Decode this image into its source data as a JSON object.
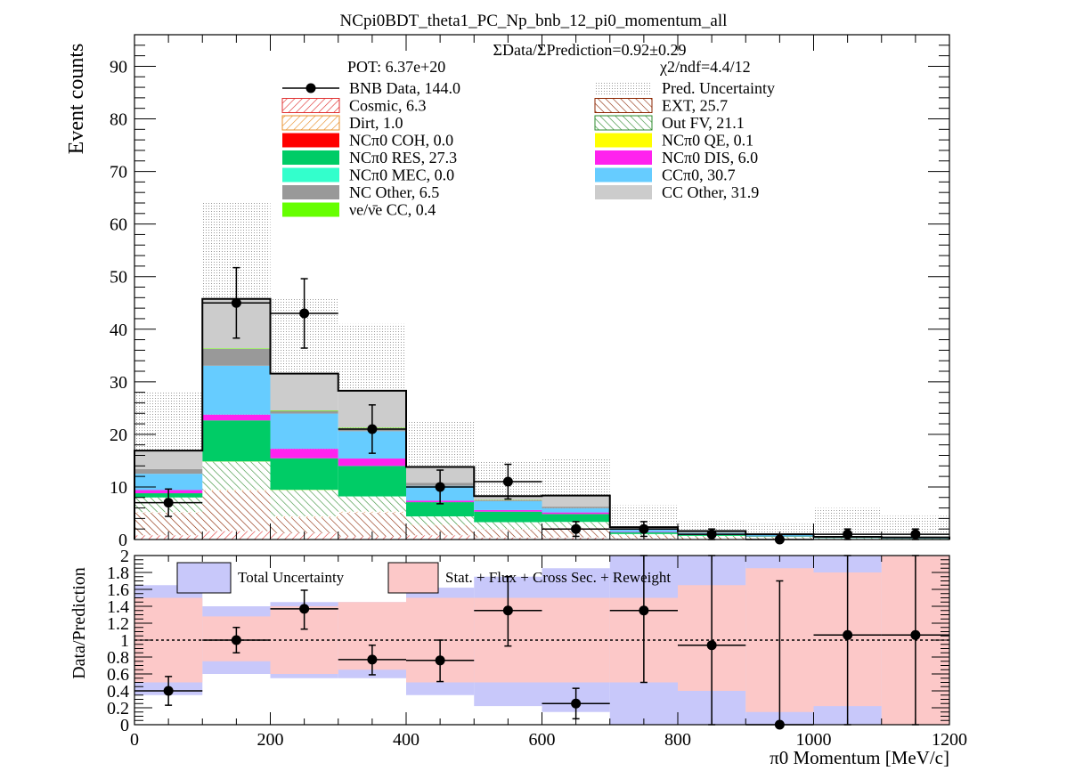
{
  "chart_data": [
    {
      "type": "bar",
      "title": "NCpi0BDT_theta1_PC_Np_bnb_12_pi0_momentum_all",
      "ylabel": "Event counts",
      "xlim": [
        0,
        1200
      ],
      "ylim": [
        0,
        96
      ],
      "bin_edges": [
        0,
        100,
        200,
        300,
        400,
        500,
        600,
        700,
        800,
        900,
        1000,
        1100,
        1200
      ],
      "stacked": true,
      "series": [
        {
          "name": "Cosmic, 6.3",
          "color": "#e03030",
          "pattern": "hatch",
          "values": [
            0.8,
            1.6,
            1.2,
            0.6,
            0.8,
            0.4,
            0.4,
            0.2,
            0.1,
            0.1,
            0.05,
            0.05
          ]
        },
        {
          "name": "EXT, 25.7",
          "color": "#8b2500",
          "pattern": "hatch",
          "values": [
            4.3,
            7.6,
            3.0,
            4.5,
            1.9,
            1.5,
            1.8,
            0.5,
            0.3,
            0.2,
            0.1,
            0.0
          ]
        },
        {
          "name": "Dirt, 1.0",
          "color": "#e8902c",
          "pattern": "hatch",
          "values": [
            0.1,
            0.2,
            0.2,
            0.2,
            0.1,
            0.1,
            0.05,
            0.05,
            0.0,
            0.0,
            0.0,
            0.0
          ]
        },
        {
          "name": "Out FV, 21.1",
          "color": "#2e8b2e",
          "pattern": "hatch",
          "values": [
            2.8,
            5.4,
            5.0,
            2.9,
            1.6,
            1.3,
            1.1,
            0.3,
            0.3,
            0.2,
            0.1,
            0.1
          ]
        },
        {
          "name": "NCπ0 COH,  0.0",
          "color": "#ff0000",
          "pattern": "solid",
          "values": [
            0,
            0,
            0,
            0,
            0,
            0,
            0,
            0,
            0,
            0,
            0,
            0
          ]
        },
        {
          "name": "NCπ0 QE,  0.1",
          "color": "#ffff00",
          "pattern": "solid",
          "values": [
            0.0,
            0.05,
            0.05,
            0.0,
            0.0,
            0.0,
            0.0,
            0.0,
            0.0,
            0.0,
            0.0,
            0.0
          ]
        },
        {
          "name": "NCπ0 RES,  27.3",
          "color": "#00cc66",
          "pattern": "solid",
          "values": [
            0.8,
            7.8,
            6.0,
            5.8,
            2.7,
            2.0,
            1.5,
            0.3,
            0.2,
            0.1,
            0.05,
            0.05
          ]
        },
        {
          "name": "NCπ0 DIS,  6.0",
          "color": "#ff22ee",
          "pattern": "solid",
          "values": [
            0.6,
            1.1,
            1.8,
            1.4,
            0.3,
            0.3,
            0.3,
            0.1,
            0.05,
            0.05,
            0.0,
            0.0
          ]
        },
        {
          "name": "NCπ0 MEC,  0.0",
          "color": "#33ffcc",
          "pattern": "solid",
          "values": [
            0,
            0,
            0,
            0,
            0,
            0,
            0,
            0,
            0,
            0,
            0,
            0
          ]
        },
        {
          "name": "CCπ0, 30.7",
          "color": "#66ccff",
          "pattern": "solid",
          "values": [
            3.1,
            9.3,
            6.7,
            5.2,
            2.8,
            1.7,
            0.8,
            0.4,
            0.3,
            0.2,
            0.1,
            0.1
          ]
        },
        {
          "name": "NC Other, 6.5",
          "color": "#999999",
          "pattern": "solid",
          "values": [
            0.9,
            3.2,
            0.5,
            0.6,
            0.6,
            0.2,
            0.3,
            0.1,
            0.05,
            0.05,
            0.0,
            0.0
          ]
        },
        {
          "name": "νe/ν̄e CC, 0.4",
          "color": "#66ff00",
          "pattern": "solid",
          "values": [
            0.0,
            0.1,
            0.1,
            0.1,
            0.0,
            0.05,
            0.0,
            0.0,
            0.0,
            0.0,
            0.0,
            0.0
          ]
        },
        {
          "name": "CC Other, 31.9",
          "color": "#cccccc",
          "pattern": "solid",
          "values": [
            3.5,
            9.4,
            7.0,
            7.0,
            3.0,
            0.7,
            2.1,
            0.4,
            0.3,
            0.1,
            0.1,
            0.1
          ]
        }
      ],
      "prediction_uncertainty": {
        "name": "Pred. Uncertainty",
        "upper": [
          28,
          64,
          46,
          41,
          22.5,
          15,
          15.5,
          6.5,
          3.5,
          3.0,
          6.0,
          4.5
        ]
      },
      "data": {
        "name": "BNB Data, 144.0",
        "x": [
          50,
          150,
          250,
          350,
          450,
          550,
          650,
          750,
          850,
          950,
          1050,
          1150
        ],
        "y": [
          7,
          45,
          43,
          21,
          10,
          11,
          2,
          2,
          1,
          0,
          1,
          1
        ],
        "err": [
          2.6,
          6.7,
          6.6,
          4.6,
          3.2,
          3.3,
          1.4,
          1.4,
          1.0,
          0.0,
          1.0,
          1.0
        ]
      },
      "annotations": [
        "ΣData/ΣPrediction=0.92±0.29",
        "POT: 6.37e+20",
        "χ2/ndf=4.4/12"
      ]
    },
    {
      "type": "bar",
      "xlabel": "π0 Momentum [MeV/c]",
      "ylabel": "Data/Prediction",
      "xlim": [
        0,
        1200
      ],
      "ylim": [
        0,
        2
      ],
      "bin_edges": [
        0,
        100,
        200,
        300,
        400,
        500,
        600,
        700,
        800,
        900,
        1000,
        1100,
        1200
      ],
      "reference_line": 1,
      "bands": [
        {
          "name": "Total Uncertainty",
          "color": "#c8c8fa",
          "low": [
            0.35,
            0.6,
            0.55,
            0.55,
            0.35,
            0.22,
            0.15,
            0.0,
            0.0,
            0.0,
            0.0,
            0.0
          ],
          "high": [
            1.65,
            1.4,
            1.45,
            1.45,
            1.62,
            1.75,
            1.85,
            2.0,
            2.0,
            2.0,
            2.0,
            2.0
          ]
        },
        {
          "name": "Stat. + Flux + Cross Sec. + Reweight",
          "color": "#fcc8c8",
          "low": [
            0.5,
            0.75,
            0.6,
            0.65,
            0.5,
            0.5,
            0.5,
            0.5,
            0.4,
            0.15,
            0.22,
            0.0
          ],
          "high": [
            1.5,
            1.28,
            1.4,
            1.45,
            1.5,
            1.5,
            1.5,
            1.5,
            1.65,
            1.85,
            1.8,
            2.0
          ]
        }
      ],
      "ratio_points": {
        "x": [
          50,
          150,
          250,
          350,
          450,
          550,
          650,
          750,
          850,
          950,
          1050,
          1150
        ],
        "y": [
          0.4,
          1.0,
          1.37,
          0.77,
          0.76,
          1.35,
          0.25,
          1.35,
          0.94,
          0.0,
          1.06,
          1.06
        ],
        "err_low": [
          0.17,
          0.15,
          0.24,
          0.18,
          0.25,
          0.42,
          0.18,
          0.85,
          0.94,
          0.0,
          1.06,
          1.06
        ],
        "err_high": [
          0.17,
          0.15,
          0.22,
          0.17,
          0.24,
          0.4,
          0.18,
          0.85,
          1.06,
          1.7,
          1.06,
          1.06
        ]
      },
      "xticks": [
        0,
        200,
        400,
        600,
        800,
        1000,
        1200
      ],
      "yticks": [
        0,
        0.2,
        0.4,
        0.6,
        0.8,
        1,
        1.2,
        1.4,
        1.6,
        1.8,
        2
      ]
    }
  ],
  "main_yticks": [
    0,
    10,
    20,
    30,
    40,
    50,
    60,
    70,
    80,
    90
  ]
}
